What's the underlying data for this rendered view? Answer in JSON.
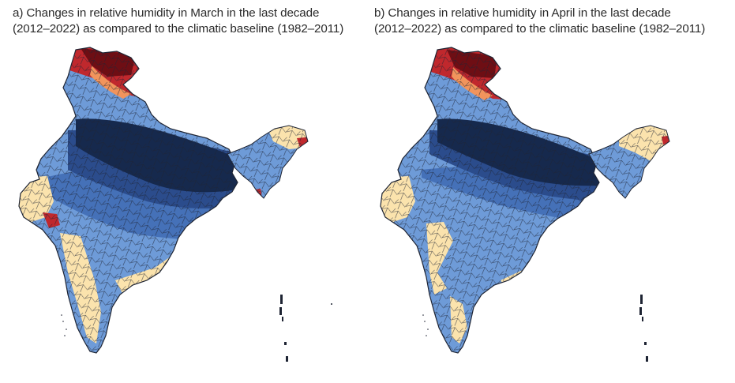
{
  "panels": [
    {
      "title_line1": "a) Changes in relative humidity in March in the last decade",
      "title_line2": "(2012–2022) as compared to the climatic baseline (1982–2011)"
    },
    {
      "title_line1": "b) Changes in relative humidity in April in the last decade",
      "title_line2": "(2012–2022) as compared to the climatic baseline (1982–2011)"
    }
  ],
  "colors": {
    "navy": "#16294d",
    "dark_blue": "#2b4c8c",
    "mid_blue": "#4571b8",
    "light_blue": "#6e9bd8",
    "cream": "#fbe3ad",
    "orange": "#f1945c",
    "red": "#c0282d",
    "dark_red": "#6e0e14",
    "border": "#1e2433"
  }
}
